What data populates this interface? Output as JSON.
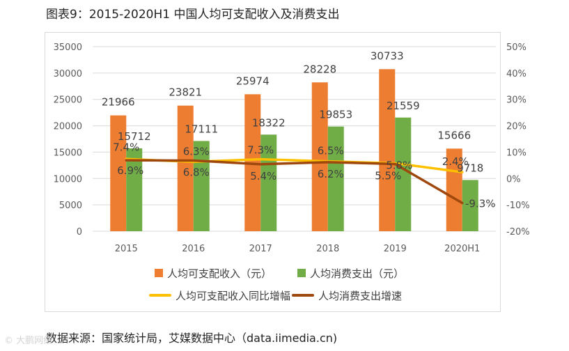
{
  "title": "图表9：2015-2020H1 中国人均可支配收入及消费支出",
  "source": "数据来源：国家统计局，艾媒数据中心（data.iimedia.cn)",
  "watermark": "© 大鹏网络",
  "chart_data": {
    "type": "bar",
    "categories": [
      "2015",
      "2016",
      "2017",
      "2018",
      "2019",
      "2020H1"
    ],
    "ylim": [
      0,
      35000
    ],
    "yticks": [
      0,
      5000,
      10000,
      15000,
      20000,
      25000,
      30000,
      35000
    ],
    "y2lim": [
      -20,
      50
    ],
    "y2ticks": [
      "-20%",
      "-10%",
      "0%",
      "10%",
      "20%",
      "30%",
      "40%",
      "50%"
    ],
    "y2ticks_values": [
      -20,
      -10,
      0,
      10,
      20,
      30,
      40,
      50
    ],
    "grid": true,
    "legend_position": "bottom",
    "series": [
      {
        "name": "人均可支配收入（元）",
        "type": "bar",
        "axis": "left",
        "color": "#ED7D31",
        "values": [
          21966,
          23821,
          25974,
          28228,
          30733,
          15666
        ],
        "labels": [
          "21966",
          "23821",
          "25974",
          "28228",
          "30733",
          "15666"
        ]
      },
      {
        "name": "人均消费支出（元）",
        "type": "bar",
        "axis": "left",
        "color": "#70AD47",
        "values": [
          15712,
          17111,
          18322,
          19853,
          21559,
          9718
        ],
        "labels": [
          "15712",
          "17111",
          "18322",
          "19853",
          "21559",
          "9718"
        ]
      },
      {
        "name": "人均可支配收入同比增幅",
        "type": "line",
        "axis": "right",
        "color": "#FFC000",
        "values": [
          7.4,
          6.3,
          7.3,
          6.5,
          5.8,
          2.4
        ],
        "labels": [
          "7.4%",
          "6.3%",
          "7.3%",
          "6.5%",
          "5.8%",
          "2.4%"
        ]
      },
      {
        "name": "人均消费支出增速",
        "type": "line",
        "axis": "right",
        "color": "#9E480E",
        "values": [
          6.9,
          6.8,
          5.4,
          6.2,
          5.5,
          -9.3
        ],
        "labels": [
          "6.9%",
          "6.8%",
          "5.4%",
          "6.2%",
          "5.5%",
          "-9.3%"
        ]
      }
    ]
  }
}
